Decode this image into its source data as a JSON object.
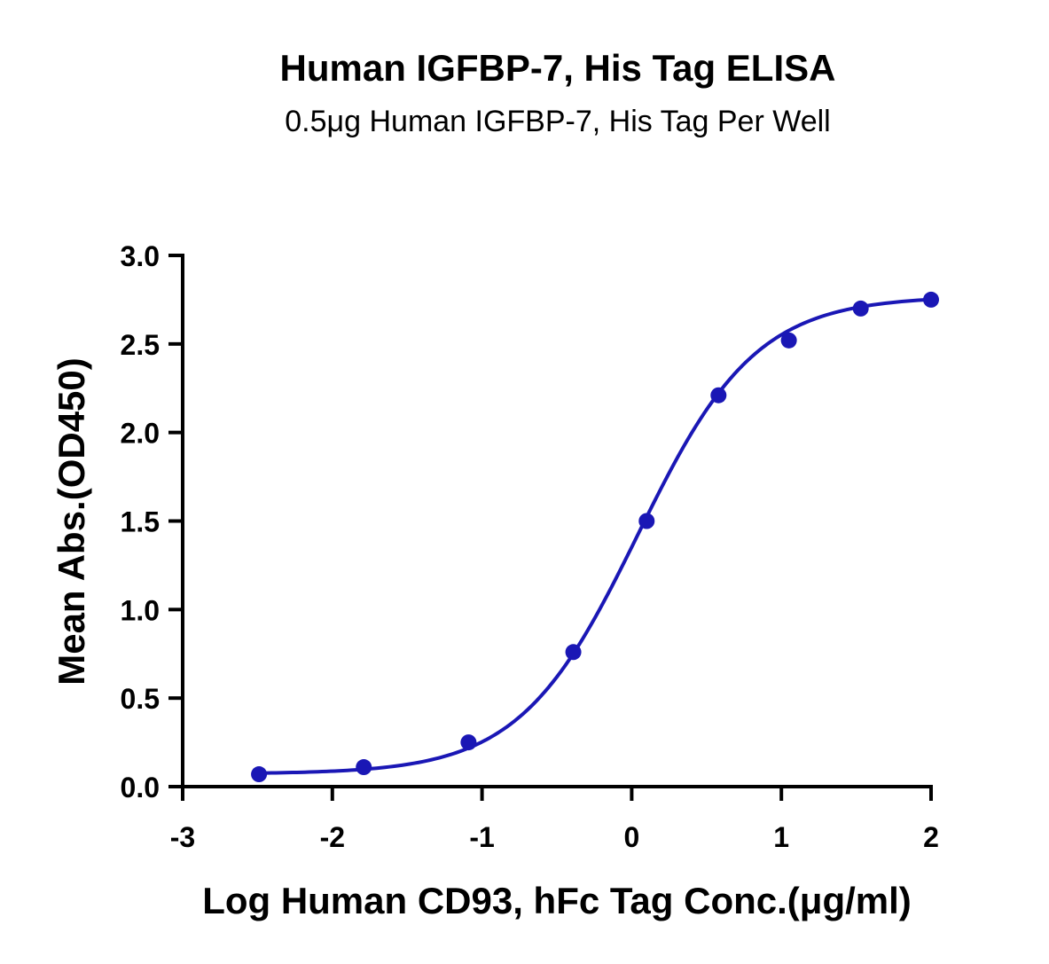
{
  "chart_data": {
    "type": "scatter",
    "title": "Human IGFBP-7, His Tag ELISA",
    "subtitle": "0.5μg Human IGFBP-7, His Tag Per Well",
    "xlabel": "Log Human CD93, hFc Tag Conc.(μg/ml)",
    "ylabel": "Mean Abs.(OD450)",
    "xlim": [
      -3,
      2
    ],
    "ylim": [
      0,
      3.0
    ],
    "xticks": [
      "-3",
      "-2",
      "-1",
      "0",
      "1",
      "2"
    ],
    "yticks": [
      "0.0",
      "0.5",
      "1.0",
      "1.5",
      "2.0",
      "2.5",
      "3.0"
    ],
    "grid": false,
    "legend": "none",
    "series": [
      {
        "points": [
          {
            "x": -2.49,
            "y": 0.07
          },
          {
            "x": -1.79,
            "y": 0.11
          },
          {
            "x": -1.09,
            "y": 0.25
          },
          {
            "x": -0.39,
            "y": 0.76
          },
          {
            "x": 0.1,
            "y": 1.5
          },
          {
            "x": 0.58,
            "y": 2.21
          },
          {
            "x": 1.05,
            "y": 2.52
          },
          {
            "x": 1.53,
            "y": 2.7
          },
          {
            "x": 2.0,
            "y": 2.75
          }
        ],
        "fit_curve": "four-parameter logistic",
        "color": "#1a17b5"
      }
    ]
  }
}
